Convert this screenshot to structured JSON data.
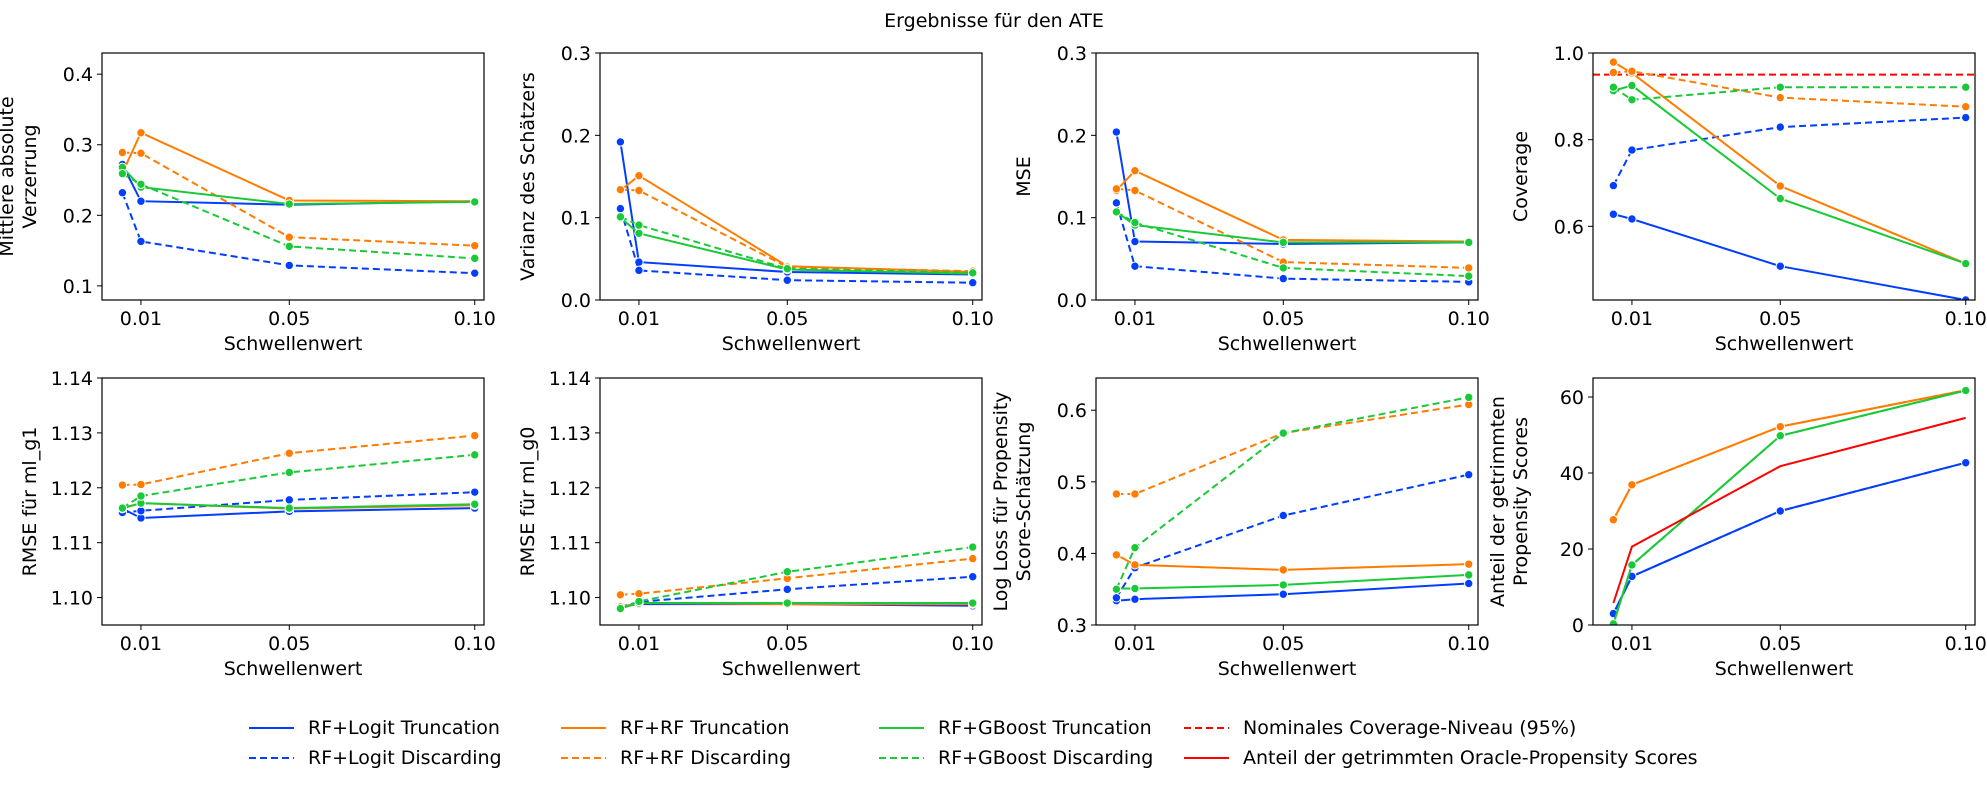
{
  "figure_title": "Ergebnisse für den ATE",
  "colors": {
    "logit": "#023eff",
    "rf": "#ff7c00",
    "gboost": "#1ac938",
    "nominal": "#ff0000",
    "oracle": "#ff0000"
  },
  "legend": {
    "items": [
      {
        "label": "RF+Logit Truncation",
        "color": "#023eff",
        "dash": "solid"
      },
      {
        "label": "RF+Logit Discarding",
        "color": "#023eff",
        "dash": "dashed"
      },
      {
        "label": "RF+RF Truncation",
        "color": "#ff7c00",
        "dash": "solid"
      },
      {
        "label": "RF+RF Discarding",
        "color": "#ff7c00",
        "dash": "dashed"
      },
      {
        "label": "RF+GBoost Truncation",
        "color": "#1ac938",
        "dash": "solid"
      },
      {
        "label": "RF+GBoost Discarding",
        "color": "#1ac938",
        "dash": "dashed"
      },
      {
        "label": "Nominales Coverage-Niveau (95%)",
        "color": "#ff0000",
        "dash": "dashed"
      },
      {
        "label": "Anteil der getrimmten Oracle-Propensity Scores",
        "color": "#ff0000",
        "dash": "solid"
      }
    ]
  },
  "chart_data": [
    {
      "type": "line",
      "ylabel": [
        "Mittlere absolute",
        "Verzerrung"
      ],
      "xlabel": "Schwellenwert",
      "xticks": [
        "0.01",
        "0.05",
        "0.10"
      ],
      "xlim": [
        -0.0005,
        0.1025
      ],
      "ylim": [
        0.08,
        0.43
      ],
      "yticks": [
        "0.1",
        "0.2",
        "0.3",
        "0.4"
      ],
      "x": [
        0.005,
        0.01,
        0.05,
        0.1
      ],
      "series": [
        {
          "name": "RF+Logit Truncation",
          "color": "#023eff",
          "dash": "solid",
          "values": [
            0.272,
            0.22,
            0.215,
            0.22
          ]
        },
        {
          "name": "RF+Logit Discarding",
          "color": "#023eff",
          "dash": "dashed",
          "values": [
            0.232,
            0.163,
            0.129,
            0.118
          ]
        },
        {
          "name": "RF+RF Truncation",
          "color": "#ff7c00",
          "dash": "solid",
          "values": [
            0.26,
            0.317,
            0.221,
            0.22
          ]
        },
        {
          "name": "RF+RF Discarding",
          "color": "#ff7c00",
          "dash": "dashed",
          "values": [
            0.289,
            0.288,
            0.169,
            0.157
          ]
        },
        {
          "name": "RF+GBoost Truncation",
          "color": "#1ac938",
          "dash": "solid",
          "values": [
            0.268,
            0.24,
            0.216,
            0.219
          ]
        },
        {
          "name": "RF+GBoost Discarding",
          "color": "#1ac938",
          "dash": "dashed",
          "values": [
            0.259,
            0.244,
            0.156,
            0.139
          ]
        }
      ]
    },
    {
      "type": "line",
      "ylabel": [
        "Varianz des Schätzers"
      ],
      "xlabel": "Schwellenwert",
      "xticks": [
        "0.01",
        "0.05",
        "0.10"
      ],
      "xlim": [
        -0.0005,
        0.1025
      ],
      "ylim": [
        0.0,
        0.3
      ],
      "yticks": [
        "0.0",
        "0.1",
        "0.2",
        "0.3"
      ],
      "x": [
        0.005,
        0.01,
        0.05,
        0.1
      ],
      "series": [
        {
          "name": "RF+Logit Truncation",
          "color": "#023eff",
          "dash": "solid",
          "values": [
            0.192,
            0.046,
            0.034,
            0.031
          ]
        },
        {
          "name": "RF+Logit Discarding",
          "color": "#023eff",
          "dash": "dashed",
          "values": [
            0.111,
            0.036,
            0.024,
            0.021
          ]
        },
        {
          "name": "RF+RF Truncation",
          "color": "#ff7c00",
          "dash": "solid",
          "values": [
            0.133,
            0.151,
            0.041,
            0.034
          ]
        },
        {
          "name": "RF+RF Discarding",
          "color": "#ff7c00",
          "dash": "dashed",
          "values": [
            0.134,
            0.133,
            0.04,
            0.035
          ]
        },
        {
          "name": "RF+GBoost Truncation",
          "color": "#1ac938",
          "dash": "solid",
          "values": [
            0.1,
            0.081,
            0.037,
            0.032
          ]
        },
        {
          "name": "RF+GBoost Discarding",
          "color": "#1ac938",
          "dash": "dashed",
          "values": [
            0.101,
            0.091,
            0.038,
            0.033
          ]
        }
      ]
    },
    {
      "type": "line",
      "ylabel": [
        "MSE"
      ],
      "xlabel": "Schwellenwert",
      "xticks": [
        "0.01",
        "0.05",
        "0.10"
      ],
      "xlim": [
        -0.0005,
        0.1025
      ],
      "ylim": [
        0.0,
        0.3
      ],
      "yticks": [
        "0.0",
        "0.1",
        "0.2",
        "0.3"
      ],
      "x": [
        0.005,
        0.01,
        0.05,
        0.1
      ],
      "series": [
        {
          "name": "RF+Logit Truncation",
          "color": "#023eff",
          "dash": "solid",
          "values": [
            0.204,
            0.071,
            0.068,
            0.07
          ]
        },
        {
          "name": "RF+Logit Discarding",
          "color": "#023eff",
          "dash": "dashed",
          "values": [
            0.118,
            0.041,
            0.026,
            0.022
          ]
        },
        {
          "name": "RF+RF Truncation",
          "color": "#ff7c00",
          "dash": "solid",
          "values": [
            0.133,
            0.157,
            0.073,
            0.071
          ]
        },
        {
          "name": "RF+RF Discarding",
          "color": "#ff7c00",
          "dash": "dashed",
          "values": [
            0.135,
            0.133,
            0.046,
            0.039
          ]
        },
        {
          "name": "RF+GBoost Truncation",
          "color": "#1ac938",
          "dash": "solid",
          "values": [
            0.107,
            0.091,
            0.07,
            0.07
          ]
        },
        {
          "name": "RF+GBoost Discarding",
          "color": "#1ac938",
          "dash": "dashed",
          "values": [
            0.107,
            0.094,
            0.039,
            0.029
          ]
        }
      ]
    },
    {
      "type": "line",
      "ylabel": [
        "Coverage"
      ],
      "xlabel": "Schwellenwert",
      "xticks": [
        "0.01",
        "0.05",
        "0.10"
      ],
      "xlim": [
        -0.0005,
        0.1025
      ],
      "ylim": [
        0.43,
        1.0
      ],
      "yticks": [
        "0.6",
        "0.8",
        "1.0"
      ],
      "x": [
        0.005,
        0.01,
        0.05,
        0.1
      ],
      "hline": {
        "y": 0.95,
        "color": "#ff0000",
        "dash": "dashed"
      },
      "series": [
        {
          "name": "RF+Logit Truncation",
          "color": "#023eff",
          "dash": "solid",
          "values": [
            0.628,
            0.617,
            0.508,
            0.43
          ]
        },
        {
          "name": "RF+Logit Discarding",
          "color": "#023eff",
          "dash": "dashed",
          "values": [
            0.694,
            0.776,
            0.829,
            0.851
          ]
        },
        {
          "name": "RF+RF Truncation",
          "color": "#ff7c00",
          "dash": "solid",
          "values": [
            0.979,
            0.954,
            0.693,
            0.514
          ]
        },
        {
          "name": "RF+RF Discarding",
          "color": "#ff7c00",
          "dash": "dashed",
          "values": [
            0.955,
            0.958,
            0.897,
            0.876
          ]
        },
        {
          "name": "RF+GBoost Truncation",
          "color": "#1ac938",
          "dash": "solid",
          "values": [
            0.913,
            0.925,
            0.664,
            0.514
          ]
        },
        {
          "name": "RF+GBoost Discarding",
          "color": "#1ac938",
          "dash": "dashed",
          "values": [
            0.921,
            0.892,
            0.921,
            0.921
          ]
        }
      ]
    },
    {
      "type": "line",
      "ylabel": [
        "RMSE für ml_g1"
      ],
      "xlabel": "Schwellenwert",
      "xticks": [
        "0.01",
        "0.05",
        "0.10"
      ],
      "xlim": [
        -0.0005,
        0.1025
      ],
      "ylim": [
        1.095,
        1.14
      ],
      "yticks": [
        "1.10",
        "1.11",
        "1.12",
        "1.13",
        "1.14"
      ],
      "x": [
        0.005,
        0.01,
        0.05,
        0.1
      ],
      "series": [
        {
          "name": "RF+Logit Truncation",
          "color": "#023eff",
          "dash": "solid",
          "values": [
            1.1162,
            1.1145,
            1.1157,
            1.1163
          ]
        },
        {
          "name": "RF+Logit Discarding",
          "color": "#023eff",
          "dash": "dashed",
          "values": [
            1.1155,
            1.1158,
            1.1178,
            1.1192
          ]
        },
        {
          "name": "RF+RF Truncation",
          "color": "#ff7c00",
          "dash": "solid",
          "values": [
            1.1162,
            1.1172,
            1.1162,
            1.1168
          ]
        },
        {
          "name": "RF+RF Discarding",
          "color": "#ff7c00",
          "dash": "dashed",
          "values": [
            1.1205,
            1.1206,
            1.1263,
            1.1295
          ]
        },
        {
          "name": "RF+GBoost Truncation",
          "color": "#1ac938",
          "dash": "solid",
          "values": [
            1.1163,
            1.1172,
            1.1163,
            1.117
          ]
        },
        {
          "name": "RF+GBoost Discarding",
          "color": "#1ac938",
          "dash": "dashed",
          "values": [
            1.1163,
            1.1185,
            1.1228,
            1.126
          ]
        }
      ]
    },
    {
      "type": "line",
      "ylabel": [
        "RMSE für ml_g0"
      ],
      "xlabel": "Schwellenwert",
      "xticks": [
        "0.01",
        "0.05",
        "0.10"
      ],
      "xlim": [
        -0.0005,
        0.1025
      ],
      "ylim": [
        1.095,
        1.14
      ],
      "yticks": [
        "1.10",
        "1.11",
        "1.12",
        "1.13",
        "1.14"
      ],
      "x": [
        0.005,
        0.01,
        0.05,
        0.1
      ],
      "series": [
        {
          "name": "RF+Logit Truncation",
          "color": "#023eff",
          "dash": "solid",
          "values": [
            1.0983,
            1.0988,
            1.0988,
            1.0985
          ]
        },
        {
          "name": "RF+Logit Discarding",
          "color": "#023eff",
          "dash": "dashed",
          "values": [
            1.0983,
            1.0992,
            1.1015,
            1.1038
          ]
        },
        {
          "name": "RF+RF Truncation",
          "color": "#ff7c00",
          "dash": "solid",
          "values": [
            1.0983,
            1.099,
            1.0988,
            1.0988
          ]
        },
        {
          "name": "RF+RF Discarding",
          "color": "#ff7c00",
          "dash": "dashed",
          "values": [
            1.1005,
            1.1007,
            1.1035,
            1.1071
          ]
        },
        {
          "name": "RF+GBoost Truncation",
          "color": "#1ac938",
          "dash": "solid",
          "values": [
            1.098,
            1.099,
            1.099,
            1.099
          ]
        },
        {
          "name": "RF+GBoost Discarding",
          "color": "#1ac938",
          "dash": "dashed",
          "values": [
            1.098,
            1.0993,
            1.1047,
            1.1092
          ]
        }
      ]
    },
    {
      "type": "line",
      "ylabel": [
        "Log Loss für Propensity",
        "Score-Schätzung"
      ],
      "xlabel": "Schwellenwert",
      "xticks": [
        "0.01",
        "0.05",
        "0.10"
      ],
      "xlim": [
        -0.0005,
        0.1025
      ],
      "ylim": [
        0.3,
        0.645
      ],
      "yticks": [
        "0.3",
        "0.4",
        "0.5",
        "0.6"
      ],
      "x": [
        0.005,
        0.01,
        0.05,
        0.1
      ],
      "series": [
        {
          "name": "RF+Logit Truncation",
          "color": "#023eff",
          "dash": "solid",
          "values": [
            0.334,
            0.336,
            0.343,
            0.358
          ]
        },
        {
          "name": "RF+Logit Discarding",
          "color": "#023eff",
          "dash": "dashed",
          "values": [
            0.338,
            0.38,
            0.453,
            0.51
          ]
        },
        {
          "name": "RF+RF Truncation",
          "color": "#ff7c00",
          "dash": "solid",
          "values": [
            0.398,
            0.384,
            0.377,
            0.385
          ]
        },
        {
          "name": "RF+RF Discarding",
          "color": "#ff7c00",
          "dash": "dashed",
          "values": [
            0.483,
            0.483,
            0.568,
            0.608
          ]
        },
        {
          "name": "RF+GBoost Truncation",
          "color": "#1ac938",
          "dash": "solid",
          "values": [
            0.351,
            0.351,
            0.356,
            0.37
          ]
        },
        {
          "name": "RF+GBoost Discarding",
          "color": "#1ac938",
          "dash": "dashed",
          "values": [
            0.35,
            0.408,
            0.568,
            0.618
          ]
        }
      ]
    },
    {
      "type": "line",
      "ylabel": [
        "Anteil der getrimmten",
        "Propensity Scores"
      ],
      "xlabel": "Schwellenwert",
      "xticks": [
        "0.01",
        "0.05",
        "0.10"
      ],
      "xlim": [
        -0.0005,
        0.1025
      ],
      "ylim": [
        0,
        65
      ],
      "yticks": [
        "0",
        "20",
        "40",
        "60"
      ],
      "x": [
        0.005,
        0.01,
        0.05,
        0.1
      ],
      "series": [
        {
          "name": "RF+Logit Truncation",
          "color": "#023eff",
          "dash": "solid",
          "values": [
            3,
            12.8,
            30,
            42.7
          ]
        },
        {
          "name": "RF+Logit Discarding",
          "color": "#023eff",
          "dash": "dashed",
          "values": [
            3,
            12.8,
            30,
            42.7
          ]
        },
        {
          "name": "RF+RF Truncation",
          "color": "#ff7c00",
          "dash": "solid",
          "values": [
            27.7,
            36.9,
            52.2,
            61.8
          ]
        },
        {
          "name": "RF+RF Discarding",
          "color": "#ff7c00",
          "dash": "dashed",
          "values": [
            27.7,
            36.9,
            52.2,
            61.8
          ]
        },
        {
          "name": "RF+GBoost Truncation",
          "color": "#1ac938",
          "dash": "solid",
          "values": [
            0.3,
            15.8,
            49.8,
            61.7
          ]
        },
        {
          "name": "RF+GBoost Discarding",
          "color": "#1ac938",
          "dash": "dashed",
          "values": [
            0.3,
            15.8,
            49.8,
            61.7
          ]
        },
        {
          "name": "Anteil der getrimmten Oracle-Propensity Scores",
          "color": "#ff0000",
          "dash": "solid",
          "markers": false,
          "values": [
            5.8,
            20.6,
            41.8,
            54.5
          ]
        }
      ]
    }
  ]
}
